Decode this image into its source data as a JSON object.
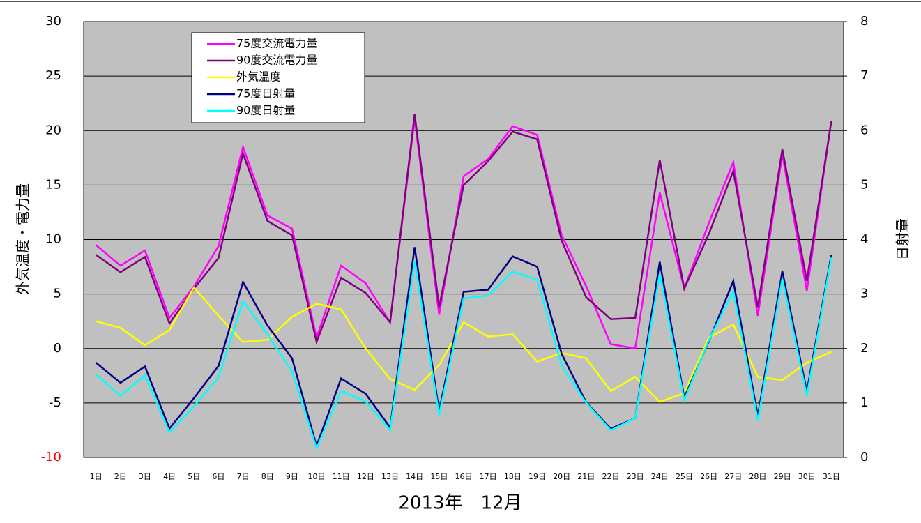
{
  "chart_data": {
    "type": "line",
    "xlabel": "2013年　12月",
    "ylabel": "外気温度・電力量",
    "y2label": "日射量",
    "categories": [
      "1日",
      "2日",
      "3日",
      "4日",
      "5日",
      "6日",
      "7日",
      "8日",
      "9日",
      "10日",
      "11日",
      "12日",
      "13日",
      "14日",
      "15日",
      "16日",
      "17日",
      "18日",
      "19日",
      "20日",
      "21日",
      "22日",
      "23日",
      "24日",
      "25日",
      "26日",
      "27日",
      "28日",
      "29日",
      "30日",
      "31日"
    ],
    "ylim": [
      -10,
      30
    ],
    "yticks": [
      {
        "value": -10,
        "label": "-10",
        "color": "#ff0000"
      },
      -5,
      0,
      5,
      10,
      15,
      20,
      25,
      30
    ],
    "y2lim": [
      0,
      8
    ],
    "y2ticks": [
      0,
      1,
      2,
      3,
      4,
      5,
      6,
      7,
      8
    ],
    "grid": true,
    "plot_background": "#c0c0c0",
    "legend": "top-left",
    "series": [
      {
        "name": "75度交流電力量",
        "color": "#ff00ff",
        "values": [
          9.5,
          7.6,
          9.0,
          2.8,
          5.7,
          9.4,
          18.5,
          12.2,
          11.0,
          1.0,
          7.6,
          6.0,
          2.4,
          21.1,
          3.1,
          15.8,
          17.4,
          20.4,
          19.6,
          10.4,
          5.7,
          0.4,
          0.0,
          14.3,
          5.5,
          11.5,
          17.1,
          3.0,
          17.8,
          5.3,
          20.9
        ]
      },
      {
        "name": "90度交流電力量",
        "color": "#800080",
        "values": [
          8.6,
          7.0,
          8.4,
          2.3,
          5.5,
          8.3,
          17.9,
          11.7,
          10.4,
          0.6,
          6.5,
          5.1,
          2.4,
          21.5,
          3.8,
          15.0,
          17.2,
          19.9,
          19.2,
          9.9,
          4.7,
          2.7,
          2.8,
          17.3,
          5.5,
          10.5,
          16.3,
          3.8,
          18.3,
          6.2,
          20.9
        ]
      },
      {
        "name": "外気温度",
        "color": "#ffff00",
        "values": [
          2.5,
          1.9,
          0.3,
          1.7,
          5.6,
          3.0,
          0.6,
          0.8,
          2.9,
          4.1,
          3.6,
          0.0,
          -2.8,
          -3.8,
          -1.5,
          2.4,
          1.1,
          1.3,
          -1.2,
          -0.4,
          -0.9,
          -3.9,
          -2.6,
          -4.9,
          -4.1,
          1.0,
          2.2,
          -2.6,
          -2.9,
          -1.3,
          -0.3
        ]
      },
      {
        "name": "75度日射量",
        "color": "#000080",
        "axis": "y2",
        "values": [
          1.74,
          1.37,
          1.67,
          0.53,
          1.09,
          1.68,
          3.22,
          2.42,
          1.82,
          0.21,
          1.45,
          1.17,
          0.55,
          3.86,
          0.85,
          3.04,
          3.08,
          3.69,
          3.5,
          1.9,
          1.01,
          0.53,
          0.72,
          3.59,
          1.1,
          2.13,
          3.24,
          0.76,
          3.42,
          1.21,
          3.72
        ]
      },
      {
        "name": "90度日射量",
        "color": "#00ffff",
        "axis": "y2",
        "values": [
          1.53,
          1.13,
          1.51,
          0.46,
          0.94,
          1.47,
          2.87,
          2.26,
          1.58,
          0.17,
          1.22,
          1.03,
          0.5,
          3.6,
          0.78,
          2.92,
          2.97,
          3.41,
          3.26,
          1.69,
          1.0,
          0.5,
          0.72,
          3.37,
          1.05,
          2.15,
          3.05,
          0.68,
          3.28,
          1.13,
          3.67
        ]
      }
    ]
  }
}
